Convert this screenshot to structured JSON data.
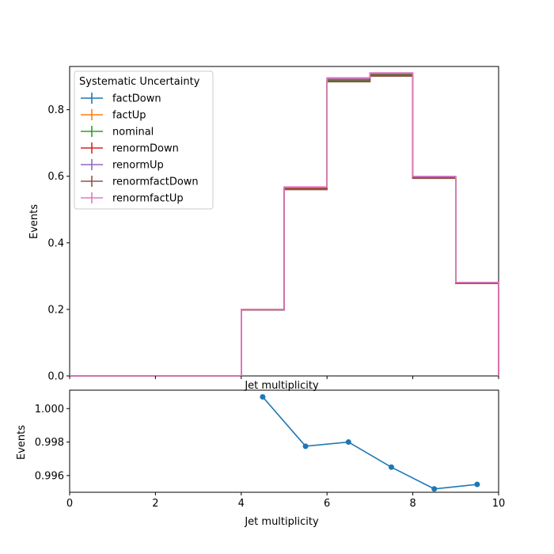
{
  "chart_data": [
    {
      "type": "line",
      "style": "step",
      "xlabel": "Jet multiplicity",
      "ylabel": "Events",
      "xlim": [
        0,
        10
      ],
      "ylim": [
        0,
        0.93
      ],
      "x_tick_labels_shown": false,
      "yticks": [
        0.0,
        0.2,
        0.4,
        0.6,
        0.8
      ],
      "ytick_labels": [
        "0.0",
        "0.2",
        "0.4",
        "0.6",
        "0.8"
      ],
      "bin_edges": [
        0,
        1,
        2,
        3,
        4,
        5,
        6,
        7,
        8,
        9,
        10
      ],
      "grid": false,
      "legend": {
        "title": "Systematic Uncertainty",
        "placement": "top-left"
      },
      "series": [
        {
          "name": "factDown",
          "color": "#1f77b4",
          "values": [
            0,
            0,
            0,
            0,
            0.199,
            0.563,
            0.888,
            0.905,
            0.596,
            0.279
          ]
        },
        {
          "name": "factUp",
          "color": "#ff7f0e",
          "values": [
            0,
            0,
            0,
            0,
            0.2,
            0.566,
            0.893,
            0.908,
            0.598,
            0.28
          ]
        },
        {
          "name": "nominal",
          "color": "#2ca02c",
          "values": [
            0,
            0,
            0,
            0,
            0.199,
            0.564,
            0.89,
            0.906,
            0.597,
            0.279
          ]
        },
        {
          "name": "renormDown",
          "color": "#d62728",
          "values": [
            0,
            0,
            0,
            0,
            0.199,
            0.562,
            0.886,
            0.903,
            0.595,
            0.278
          ]
        },
        {
          "name": "renormUp",
          "color": "#9467bd",
          "values": [
            0,
            0,
            0,
            0,
            0.2,
            0.567,
            0.894,
            0.909,
            0.599,
            0.28
          ]
        },
        {
          "name": "renormfactDown",
          "color": "#8c564b",
          "values": [
            0,
            0,
            0,
            0,
            0.198,
            0.56,
            0.884,
            0.901,
            0.594,
            0.278
          ]
        },
        {
          "name": "renormfactUp",
          "color": "#e377c2",
          "values": [
            0,
            0,
            0,
            0,
            0.2,
            0.568,
            0.896,
            0.911,
            0.6,
            0.281
          ]
        }
      ]
    },
    {
      "type": "line",
      "xlabel": "Jet multiplicity",
      "ylabel": "Events",
      "xlim": [
        0,
        10
      ],
      "ylim": [
        0.995,
        1.0011
      ],
      "xticks": [
        0,
        2,
        4,
        6,
        8,
        10
      ],
      "xtick_labels": [
        "0",
        "2",
        "4",
        "6",
        "8",
        "10"
      ],
      "yticks": [
        0.996,
        0.998,
        1.0
      ],
      "ytick_labels": [
        "0.996",
        "0.998",
        "1.000"
      ],
      "grid": false,
      "series": [
        {
          "color": "#1f77b4",
          "x": [
            4.5,
            5.5,
            6.5,
            7.5,
            8.5,
            9.5
          ],
          "values": [
            1.0007,
            0.99775,
            0.998,
            0.9965,
            0.9952,
            0.99547
          ]
        }
      ]
    }
  ]
}
